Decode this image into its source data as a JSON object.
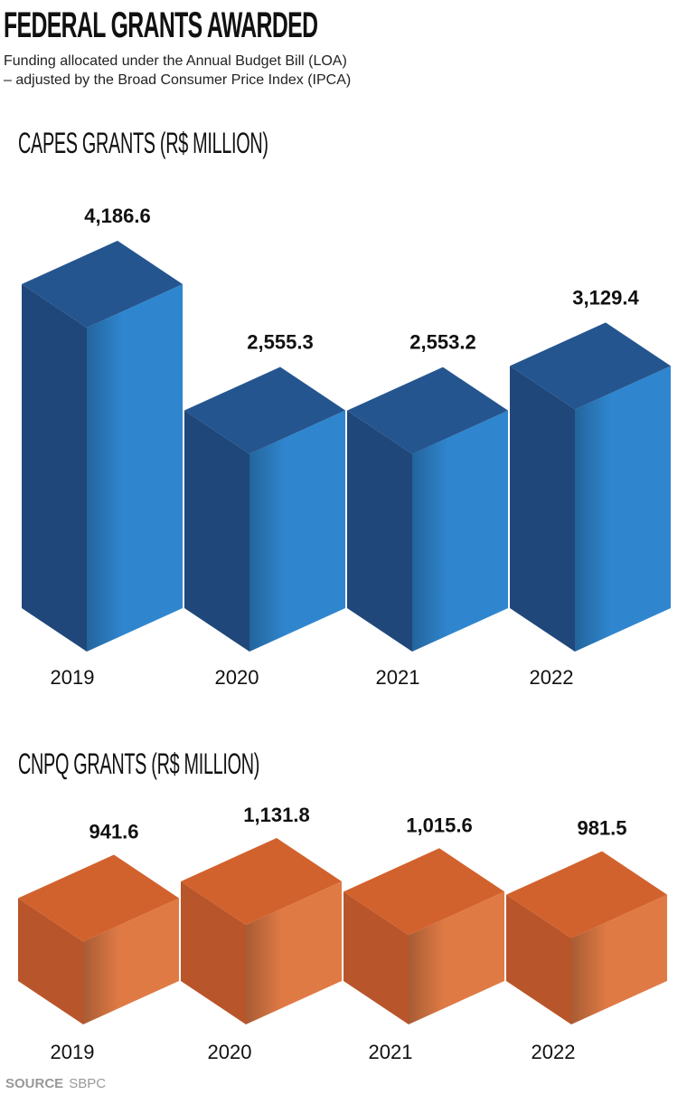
{
  "header": {
    "title": "FEDERAL GRANTS AWARDED",
    "subtitle_line1": "Funding allocated under the Annual Budget Bill (LOA)",
    "subtitle_line2": "– adjusted by the Broad Consumer Price Index (IPCA)"
  },
  "chart_data": [
    {
      "type": "bar",
      "title": "CAPES GRANTS (R$ MILLION)",
      "categories": [
        "2019",
        "2020",
        "2021",
        "2022"
      ],
      "values": [
        4186.6,
        2555.3,
        2553.2,
        3129.4
      ],
      "value_labels": [
        "4,186.6",
        "2,555.3",
        "2,553.2",
        "3,129.4"
      ],
      "style": "3d-isometric",
      "colors": {
        "front": "#2f86cf",
        "top": "#24558f",
        "side": "#20477a"
      }
    },
    {
      "type": "bar",
      "title": "CNPQ GRANTS (R$ MILLION)",
      "categories": [
        "2019",
        "2020",
        "2021",
        "2022"
      ],
      "values": [
        941.6,
        1131.8,
        1015.6,
        981.5
      ],
      "value_labels": [
        "941.6",
        "1,131.8",
        "1,015.6",
        "981.5"
      ],
      "style": "3d-isometric",
      "colors": {
        "front": "#e07a45",
        "top": "#d2622d",
        "side": "#b9552a"
      }
    }
  ],
  "footer": {
    "source_label": "SOURCE",
    "source_value": "SBPC"
  }
}
